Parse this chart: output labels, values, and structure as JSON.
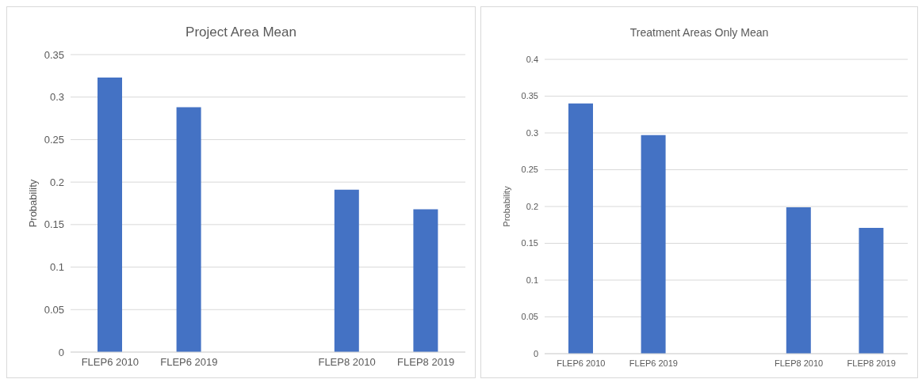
{
  "chart_data": [
    {
      "type": "bar",
      "title": "Project Area Mean",
      "ylabel": "Probability",
      "categories": [
        "FLEP6 2010",
        "FLEP6 2019",
        null,
        "FLEP8 2010",
        "FLEP8 2019"
      ],
      "values": [
        0.323,
        0.288,
        null,
        0.191,
        0.168
      ],
      "color": "#4472c4",
      "ylim": [
        0,
        0.35
      ],
      "yticks": [
        0,
        0.05,
        0.1,
        0.15,
        0.2,
        0.25,
        0.3,
        0.35
      ],
      "grid": "y",
      "legend": false
    },
    {
      "type": "bar",
      "title": "Treatment Areas Only Mean",
      "ylabel": "Probability",
      "categories": [
        "FLEP6 2010",
        "FLEP6 2019",
        null,
        "FLEP8 2010",
        "FLEP8 2019"
      ],
      "values": [
        0.34,
        0.297,
        null,
        0.199,
        0.171
      ],
      "color": "#4472c4",
      "ylim": [
        0,
        0.4
      ],
      "yticks": [
        0,
        0.05,
        0.1,
        0.15,
        0.2,
        0.25,
        0.3,
        0.35,
        0.4
      ],
      "grid": "y",
      "legend": false
    }
  ]
}
